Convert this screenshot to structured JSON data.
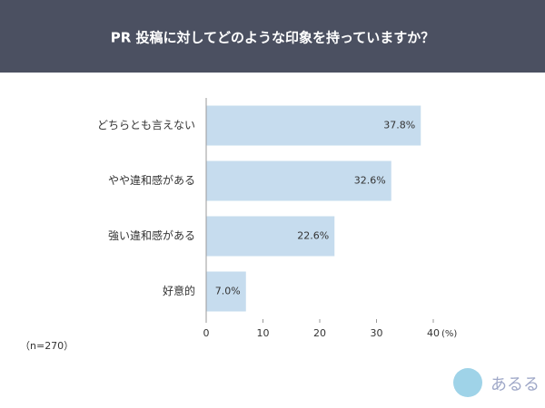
{
  "chart_data": {
    "type": "bar",
    "orientation": "horizontal",
    "title": "PR 投稿に対してどのような印象を持っていますか？",
    "categories": [
      "どちらとも言えない",
      "やや違和感がある",
      "強い違和感がある",
      "好意的"
    ],
    "values": [
      37.8,
      32.6,
      22.6,
      7.0
    ],
    "value_labels": [
      "37.8%",
      "32.6%",
      "22.6%",
      "7.0%"
    ],
    "color": "#c6dcee",
    "xlim": [
      0,
      40
    ],
    "xticks": [
      0,
      10,
      20,
      30,
      40
    ],
    "x_label": "(%)",
    "note": "（n=270）",
    "logo": "あるる"
  }
}
